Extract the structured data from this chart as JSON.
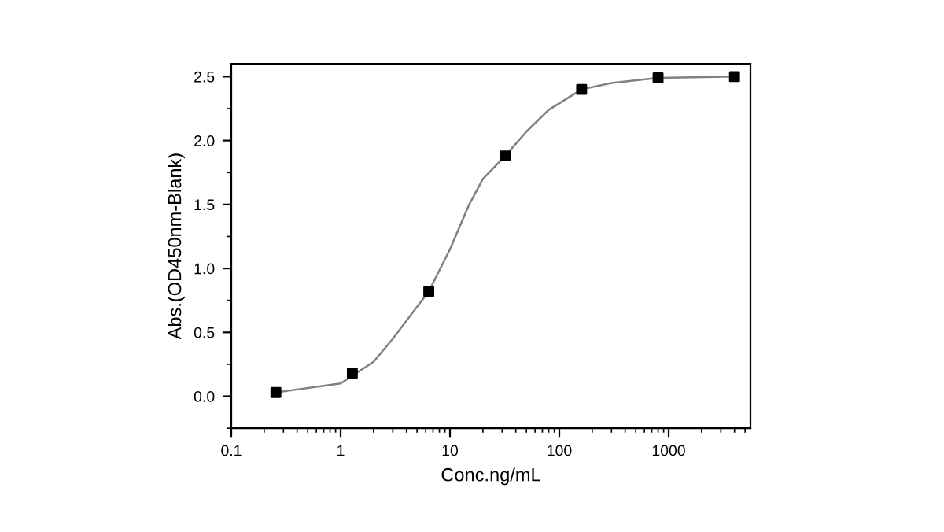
{
  "chart_data": {
    "type": "scatter",
    "xlabel": "Conc.ng/mL",
    "ylabel": "Abs.(OD450nm-Blank)",
    "log": "x",
    "xlim": [
      0.1,
      5600
    ],
    "xticks": [
      0.1,
      1,
      10,
      100,
      1000
    ],
    "ylim": [
      -0.25,
      2.6
    ],
    "yticks": [
      {
        "value": 0,
        "label": "0.0"
      },
      0.5,
      {
        "value": 1,
        "label": "1.0"
      },
      1.5,
      {
        "value": 2,
        "label": "2.0"
      },
      2.5
    ],
    "marker": "square",
    "grid": false,
    "legend": false,
    "series": [
      {
        "color": "#000000",
        "x": [
          0.256,
          1.28,
          6.4,
          32,
          160,
          800,
          4000
        ],
        "values": [
          0.03,
          0.18,
          0.82,
          1.88,
          2.4,
          2.49,
          2.5
        ]
      },
      {
        "type": "line",
        "color": "#808080",
        "marker": "none",
        "line_style": "solid",
        "x": [
          0.256,
          1,
          2,
          3,
          6.4,
          10,
          15,
          20,
          32,
          50,
          80,
          160,
          300,
          800,
          4000
        ],
        "values": [
          0.03,
          0.1,
          0.27,
          0.45,
          0.82,
          1.15,
          1.5,
          1.7,
          1.88,
          2.07,
          2.24,
          2.4,
          2.45,
          2.49,
          2.5
        ]
      }
    ]
  }
}
